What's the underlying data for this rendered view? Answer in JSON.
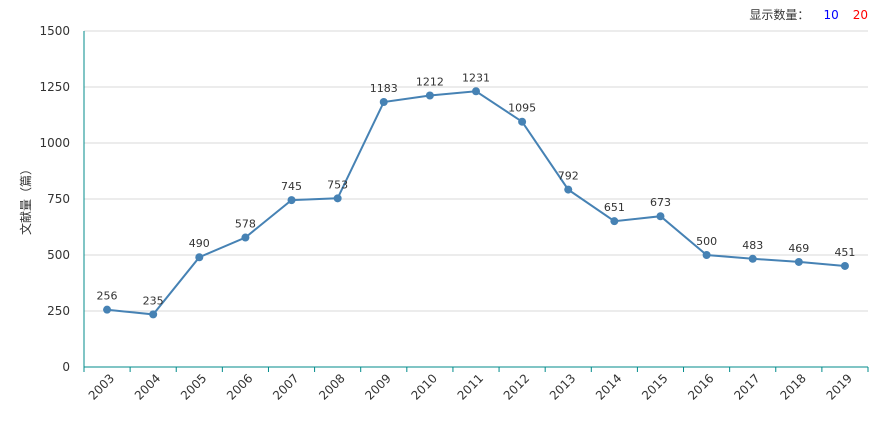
{
  "display_count": {
    "label": "显示数量：",
    "options": [
      {
        "text": "10",
        "color": "#0000ff"
      },
      {
        "text": "20",
        "color": "#ff0000"
      }
    ]
  },
  "chart_data": {
    "type": "line",
    "ylabel": "文献量（篇）",
    "xlabel": "",
    "ylim": [
      0,
      1500
    ],
    "yticks": [
      0,
      250,
      500,
      750,
      1000,
      1250,
      1500
    ],
    "x": [
      "2003",
      "2004",
      "2005",
      "2006",
      "2007",
      "2008",
      "2009",
      "2010",
      "2011",
      "2012",
      "2013",
      "2014",
      "2015",
      "2016",
      "2017",
      "2018",
      "2019"
    ],
    "values": [
      256,
      235,
      490,
      578,
      745,
      753,
      1183,
      1212,
      1231,
      1095,
      792,
      651,
      673,
      500,
      483,
      469,
      451
    ],
    "grid": true,
    "colors": {
      "line": "#4682b4",
      "axis": "#008b8b",
      "grid": "#d9d9d9",
      "label": "#333333"
    }
  }
}
